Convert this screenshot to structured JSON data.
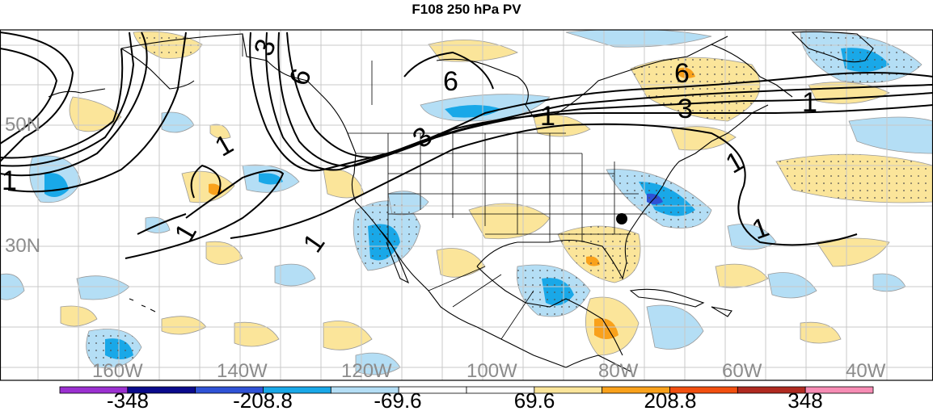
{
  "title": "F108 250 hPa PV",
  "map": {
    "lat_labels": [
      "50N",
      "30N"
    ],
    "lon_labels": [
      "160W",
      "140W",
      "120W",
      "100W",
      "80W",
      "60W",
      "40W"
    ],
    "contour_labels": [
      "3",
      "6",
      "6",
      "3",
      "1",
      "1",
      "1",
      "1",
      "1",
      "1",
      "1",
      "1",
      "6",
      "3",
      "1"
    ],
    "marker": "storm-center-dot"
  },
  "colorbar": {
    "labels": [
      "-348",
      "-208.8",
      "-69.6",
      "69.6",
      "208.8",
      "348"
    ],
    "colors": [
      "#9b30d0",
      "#0a0a8c",
      "#2f52d6",
      "#19a8e8",
      "#b4def5",
      "#ffffff",
      "#ffffff",
      "#fbe59a",
      "#f9a11b",
      "#f24f0f",
      "#b02a20",
      "#f68cb4"
    ]
  },
  "colors": {
    "ocean": "#ffffff",
    "coastline": "#000000",
    "grid": "#c8c8c8"
  }
}
